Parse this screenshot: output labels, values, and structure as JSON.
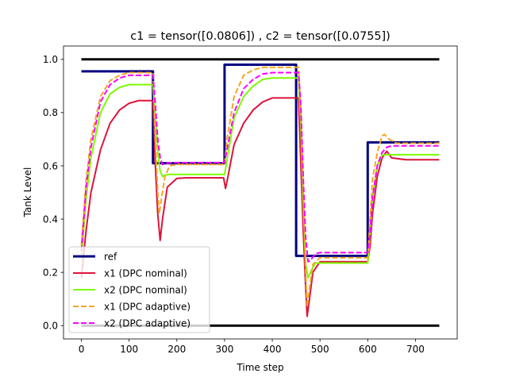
{
  "chart_data": {
    "type": "line",
    "title": "c1 = tensor([0.0806]) , c2 = tensor([0.0755])",
    "xlabel": "Time step",
    "ylabel": "Tank Level",
    "xlim": [
      -37.5,
      787.5
    ],
    "ylim": [
      -0.05,
      1.05
    ],
    "xticks": [
      0,
      100,
      200,
      300,
      400,
      500,
      600,
      700
    ],
    "yticks": [
      0.0,
      0.2,
      0.4,
      0.6,
      0.8,
      1.0
    ],
    "ytick_labels": [
      "0.0",
      "0.2",
      "0.4",
      "0.6",
      "0.8",
      "1.0"
    ],
    "grid": false,
    "legend_position": "lower-left",
    "bounds": {
      "color": "#000000",
      "upper": {
        "x": [
          0,
          750
        ],
        "y": [
          1.0,
          1.0
        ]
      },
      "lower": {
        "x": [
          0,
          750
        ],
        "y": [
          0.0,
          0.0
        ]
      }
    },
    "series": [
      {
        "name": "ref",
        "color": "#000080",
        "style": "solid",
        "x": [
          0,
          150,
          150,
          300,
          300,
          450,
          450,
          600,
          600,
          750
        ],
        "y": [
          0.955,
          0.955,
          0.61,
          0.61,
          0.98,
          0.98,
          0.262,
          0.262,
          0.688,
          0.688
        ]
      },
      {
        "name": "x1 (DPC nominal)",
        "color": "#dc143c",
        "style": "solid",
        "x": [
          0,
          10,
          20,
          40,
          60,
          80,
          100,
          120,
          150,
          155,
          160,
          165,
          170,
          180,
          200,
          220,
          250,
          298,
          302,
          305,
          320,
          340,
          360,
          380,
          400,
          420,
          455,
          460,
          465,
          470,
          473,
          478,
          485,
          500,
          520,
          560,
          600,
          605,
          610,
          620,
          630,
          640,
          650,
          680,
          750
        ],
        "y": [
          0.18,
          0.36,
          0.5,
          0.66,
          0.76,
          0.81,
          0.835,
          0.845,
          0.845,
          0.6,
          0.42,
          0.32,
          0.4,
          0.52,
          0.553,
          0.555,
          0.555,
          0.555,
          0.515,
          0.54,
          0.68,
          0.76,
          0.81,
          0.84,
          0.855,
          0.855,
          0.855,
          0.6,
          0.35,
          0.14,
          0.035,
          0.1,
          0.2,
          0.24,
          0.24,
          0.24,
          0.24,
          0.3,
          0.42,
          0.56,
          0.63,
          0.655,
          0.63,
          0.623,
          0.623
        ]
      },
      {
        "name": "x2 (DPC nominal)",
        "color": "#7cfc00",
        "style": "solid",
        "x": [
          0,
          10,
          20,
          40,
          60,
          80,
          100,
          120,
          150,
          155,
          160,
          165,
          170,
          175,
          185,
          200,
          250,
          298,
          300,
          305,
          320,
          340,
          360,
          380,
          400,
          420,
          455,
          460,
          465,
          470,
          475,
          480,
          490,
          520,
          560,
          600,
          605,
          610,
          620,
          630,
          640,
          650,
          680,
          750
        ],
        "y": [
          0.25,
          0.48,
          0.63,
          0.8,
          0.87,
          0.895,
          0.905,
          0.905,
          0.905,
          0.78,
          0.65,
          0.58,
          0.56,
          0.565,
          0.568,
          0.568,
          0.568,
          0.568,
          0.568,
          0.62,
          0.78,
          0.86,
          0.9,
          0.925,
          0.93,
          0.93,
          0.93,
          0.75,
          0.45,
          0.23,
          0.18,
          0.2,
          0.235,
          0.235,
          0.235,
          0.235,
          0.35,
          0.48,
          0.6,
          0.64,
          0.642,
          0.642,
          0.642,
          0.642
        ]
      },
      {
        "name": "x1 (DPC adaptive)",
        "color": "#f5a623",
        "style": "dashed",
        "x": [
          0,
          10,
          20,
          40,
          60,
          80,
          100,
          120,
          150,
          155,
          160,
          163,
          168,
          175,
          185,
          200,
          250,
          300,
          305,
          320,
          340,
          360,
          380,
          400,
          420,
          455,
          460,
          465,
          470,
          473,
          478,
          485,
          500,
          520,
          560,
          600,
          605,
          610,
          620,
          630,
          635,
          645,
          660,
          700,
          750
        ],
        "y": [
          0.3,
          0.55,
          0.7,
          0.86,
          0.92,
          0.94,
          0.95,
          0.95,
          0.95,
          0.7,
          0.5,
          0.42,
          0.48,
          0.56,
          0.6,
          0.605,
          0.605,
          0.605,
          0.7,
          0.86,
          0.94,
          0.96,
          0.97,
          0.97,
          0.97,
          0.97,
          0.8,
          0.5,
          0.2,
          0.07,
          0.14,
          0.23,
          0.255,
          0.255,
          0.255,
          0.255,
          0.4,
          0.55,
          0.65,
          0.712,
          0.718,
          0.7,
          0.685,
          0.685,
          0.685
        ]
      },
      {
        "name": "x2 (DPC adaptive)",
        "color": "#ff00ff",
        "style": "dashed",
        "x": [
          0,
          10,
          20,
          40,
          60,
          80,
          100,
          120,
          150,
          155,
          160,
          165,
          170,
          180,
          190,
          200,
          250,
          300,
          305,
          320,
          340,
          360,
          380,
          400,
          420,
          455,
          460,
          465,
          470,
          475,
          480,
          490,
          500,
          520,
          560,
          600,
          605,
          610,
          620,
          630,
          640,
          650,
          680,
          750
        ],
        "y": [
          0.28,
          0.52,
          0.67,
          0.84,
          0.905,
          0.93,
          0.94,
          0.94,
          0.94,
          0.83,
          0.7,
          0.63,
          0.605,
          0.61,
          0.612,
          0.612,
          0.612,
          0.612,
          0.66,
          0.8,
          0.89,
          0.925,
          0.945,
          0.95,
          0.95,
          0.95,
          0.82,
          0.55,
          0.33,
          0.24,
          0.245,
          0.27,
          0.274,
          0.274,
          0.274,
          0.274,
          0.35,
          0.48,
          0.6,
          0.65,
          0.67,
          0.675,
          0.675,
          0.675
        ]
      }
    ]
  }
}
